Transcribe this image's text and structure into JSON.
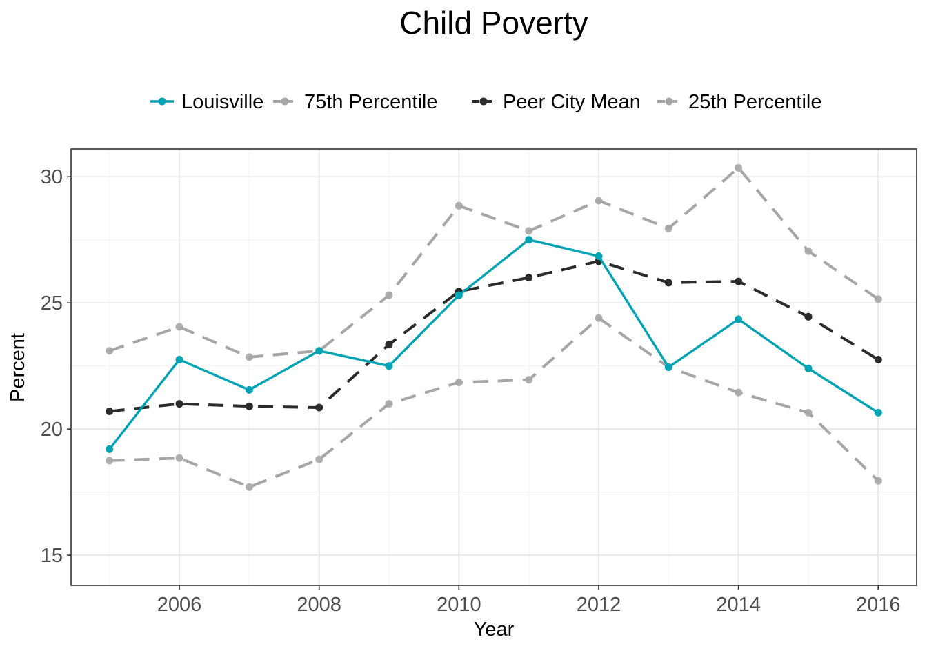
{
  "chart_data": {
    "type": "line",
    "title": "Child Poverty",
    "xlabel": "Year",
    "ylabel": "Percent",
    "x": [
      2005,
      2006,
      2007,
      2008,
      2009,
      2010,
      2011,
      2012,
      2013,
      2014,
      2015,
      2016
    ],
    "xlim": [
      2004.45,
      2016.55
    ],
    "ylim": [
      13.8,
      31.1
    ],
    "x_ticks": [
      2006,
      2008,
      2010,
      2012,
      2014,
      2016
    ],
    "y_ticks": [
      15,
      20,
      25,
      30
    ],
    "grid": true,
    "legend_position": "top",
    "series": [
      {
        "name": "Louisville",
        "color": "#00a3b4",
        "dashed": false,
        "values": [
          19.2,
          22.75,
          21.55,
          23.1,
          22.5,
          25.3,
          27.5,
          26.85,
          22.45,
          24.35,
          22.4,
          20.65
        ]
      },
      {
        "name": "75th Percentile",
        "color": "#a6a6a6",
        "dashed": true,
        "values": [
          23.1,
          24.05,
          22.85,
          23.1,
          25.3,
          28.85,
          27.85,
          29.05,
          27.95,
          30.35,
          27.05,
          25.15
        ]
      },
      {
        "name": "Peer City Mean",
        "color": "#2b2b2b",
        "dashed": true,
        "values": [
          20.7,
          21.0,
          20.9,
          20.85,
          23.35,
          25.45,
          26.0,
          26.65,
          25.8,
          25.85,
          24.45,
          22.75
        ]
      },
      {
        "name": "25th Percentile",
        "color": "#a6a6a6",
        "dashed": true,
        "values": [
          18.75,
          18.85,
          17.7,
          18.8,
          21.0,
          21.85,
          21.95,
          24.4,
          22.45,
          21.45,
          20.65,
          17.95
        ]
      }
    ]
  }
}
